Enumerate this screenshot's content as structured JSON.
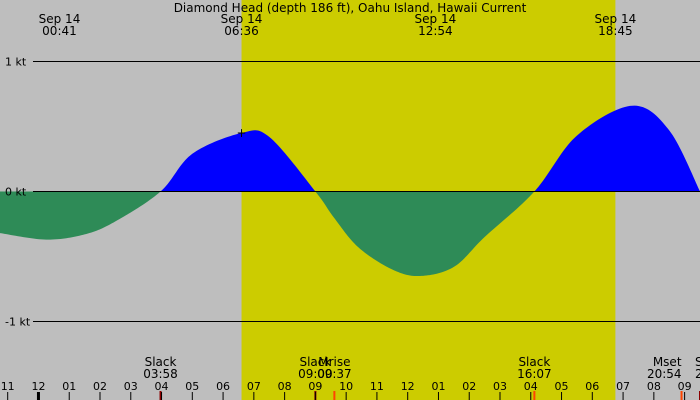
{
  "title": "Diamond Head (depth 186 ft), Oahu Island, Hawaii Current",
  "colors": {
    "night": "#bebebe",
    "day": "#cccc00",
    "flood": "#0000ff",
    "ebb": "#2e8b57",
    "tick": "#000000",
    "event_tick": "#8b0000",
    "moon_tick": "#ff4500"
  },
  "chart_data": {
    "type": "area",
    "title": "Diamond Head (depth 186 ft), Oahu Island, Hawaii Current",
    "x_unit": "hour of day (Sep 14; values below 0 are Sep 13, above 24 are Sep 15)",
    "y_unit": "kt",
    "xlim": [
      -1.25,
      21.5
    ],
    "ylim": [
      -1.4,
      1.4
    ],
    "daylight": [
      6.6,
      18.75
    ],
    "y_ticks": [
      {
        "value": 1,
        "label": "1 kt"
      },
      {
        "value": 0,
        "label": "0 kt"
      },
      {
        "value": -1,
        "label": "-1 kt"
      }
    ],
    "top_labels": [
      {
        "x": 0.683,
        "date": "Sep 14",
        "time": "00:41"
      },
      {
        "x": 6.6,
        "date": "Sep 14",
        "time": "06:36"
      },
      {
        "x": 12.9,
        "date": "Sep 14",
        "time": "12:54"
      },
      {
        "x": 18.75,
        "date": "Sep 14",
        "time": "18:45"
      }
    ],
    "hour_labels": [
      {
        "x": -1,
        "label": "11"
      },
      {
        "x": 0,
        "label": "12"
      },
      {
        "x": 1,
        "label": "01"
      },
      {
        "x": 2,
        "label": "02"
      },
      {
        "x": 3,
        "label": "03"
      },
      {
        "x": 4,
        "label": "04"
      },
      {
        "x": 5,
        "label": "05"
      },
      {
        "x": 6,
        "label": "06"
      },
      {
        "x": 7,
        "label": "07"
      },
      {
        "x": 8,
        "label": "08"
      },
      {
        "x": 9,
        "label": "09"
      },
      {
        "x": 10,
        "label": "10"
      },
      {
        "x": 11,
        "label": "11"
      },
      {
        "x": 12,
        "label": "12"
      },
      {
        "x": 13,
        "label": "01"
      },
      {
        "x": 14,
        "label": "02"
      },
      {
        "x": 15,
        "label": "03"
      },
      {
        "x": 16,
        "label": "04"
      },
      {
        "x": 17,
        "label": "05"
      },
      {
        "x": 18,
        "label": "06"
      },
      {
        "x": 19,
        "label": "07"
      },
      {
        "x": 20,
        "label": "08"
      },
      {
        "x": 21,
        "label": "09"
      }
    ],
    "events": [
      {
        "x": 3.967,
        "name": "Slack",
        "time": "03:58",
        "tick": "event"
      },
      {
        "x": 9.0,
        "name": "Slack",
        "time": "09:00",
        "tick": "event"
      },
      {
        "x": 9.617,
        "name": "Mrise",
        "time": "09:37",
        "tick": "moon"
      },
      {
        "x": 16.117,
        "name": "Slack",
        "time": "16:07",
        "tick": "moon"
      },
      {
        "x": 20.9,
        "name": "Mset",
        "time": "20:54",
        "tick": "moon"
      },
      {
        "x": 21.5,
        "name": "S",
        "time": "2",
        "tick": "event"
      }
    ],
    "series": [
      {
        "x": [
          -1.25,
          0.25,
          1.5,
          2.5,
          3.967,
          5.0,
          6.6,
          7.5,
          9.0,
          9.6,
          10.4,
          11.5,
          12.4,
          13.5,
          14.5,
          16.117,
          17.5,
          19.3,
          20.5,
          21.5
        ],
        "y": [
          -0.32,
          -0.37,
          -0.33,
          -0.23,
          0.0,
          0.29,
          0.45,
          0.42,
          0.0,
          -0.2,
          -0.43,
          -0.6,
          -0.65,
          -0.58,
          -0.35,
          0.0,
          0.43,
          0.66,
          0.47,
          0.0
        ]
      }
    ],
    "max_marker": {
      "x": 6.6,
      "y": 0.45,
      "label": "+"
    }
  }
}
